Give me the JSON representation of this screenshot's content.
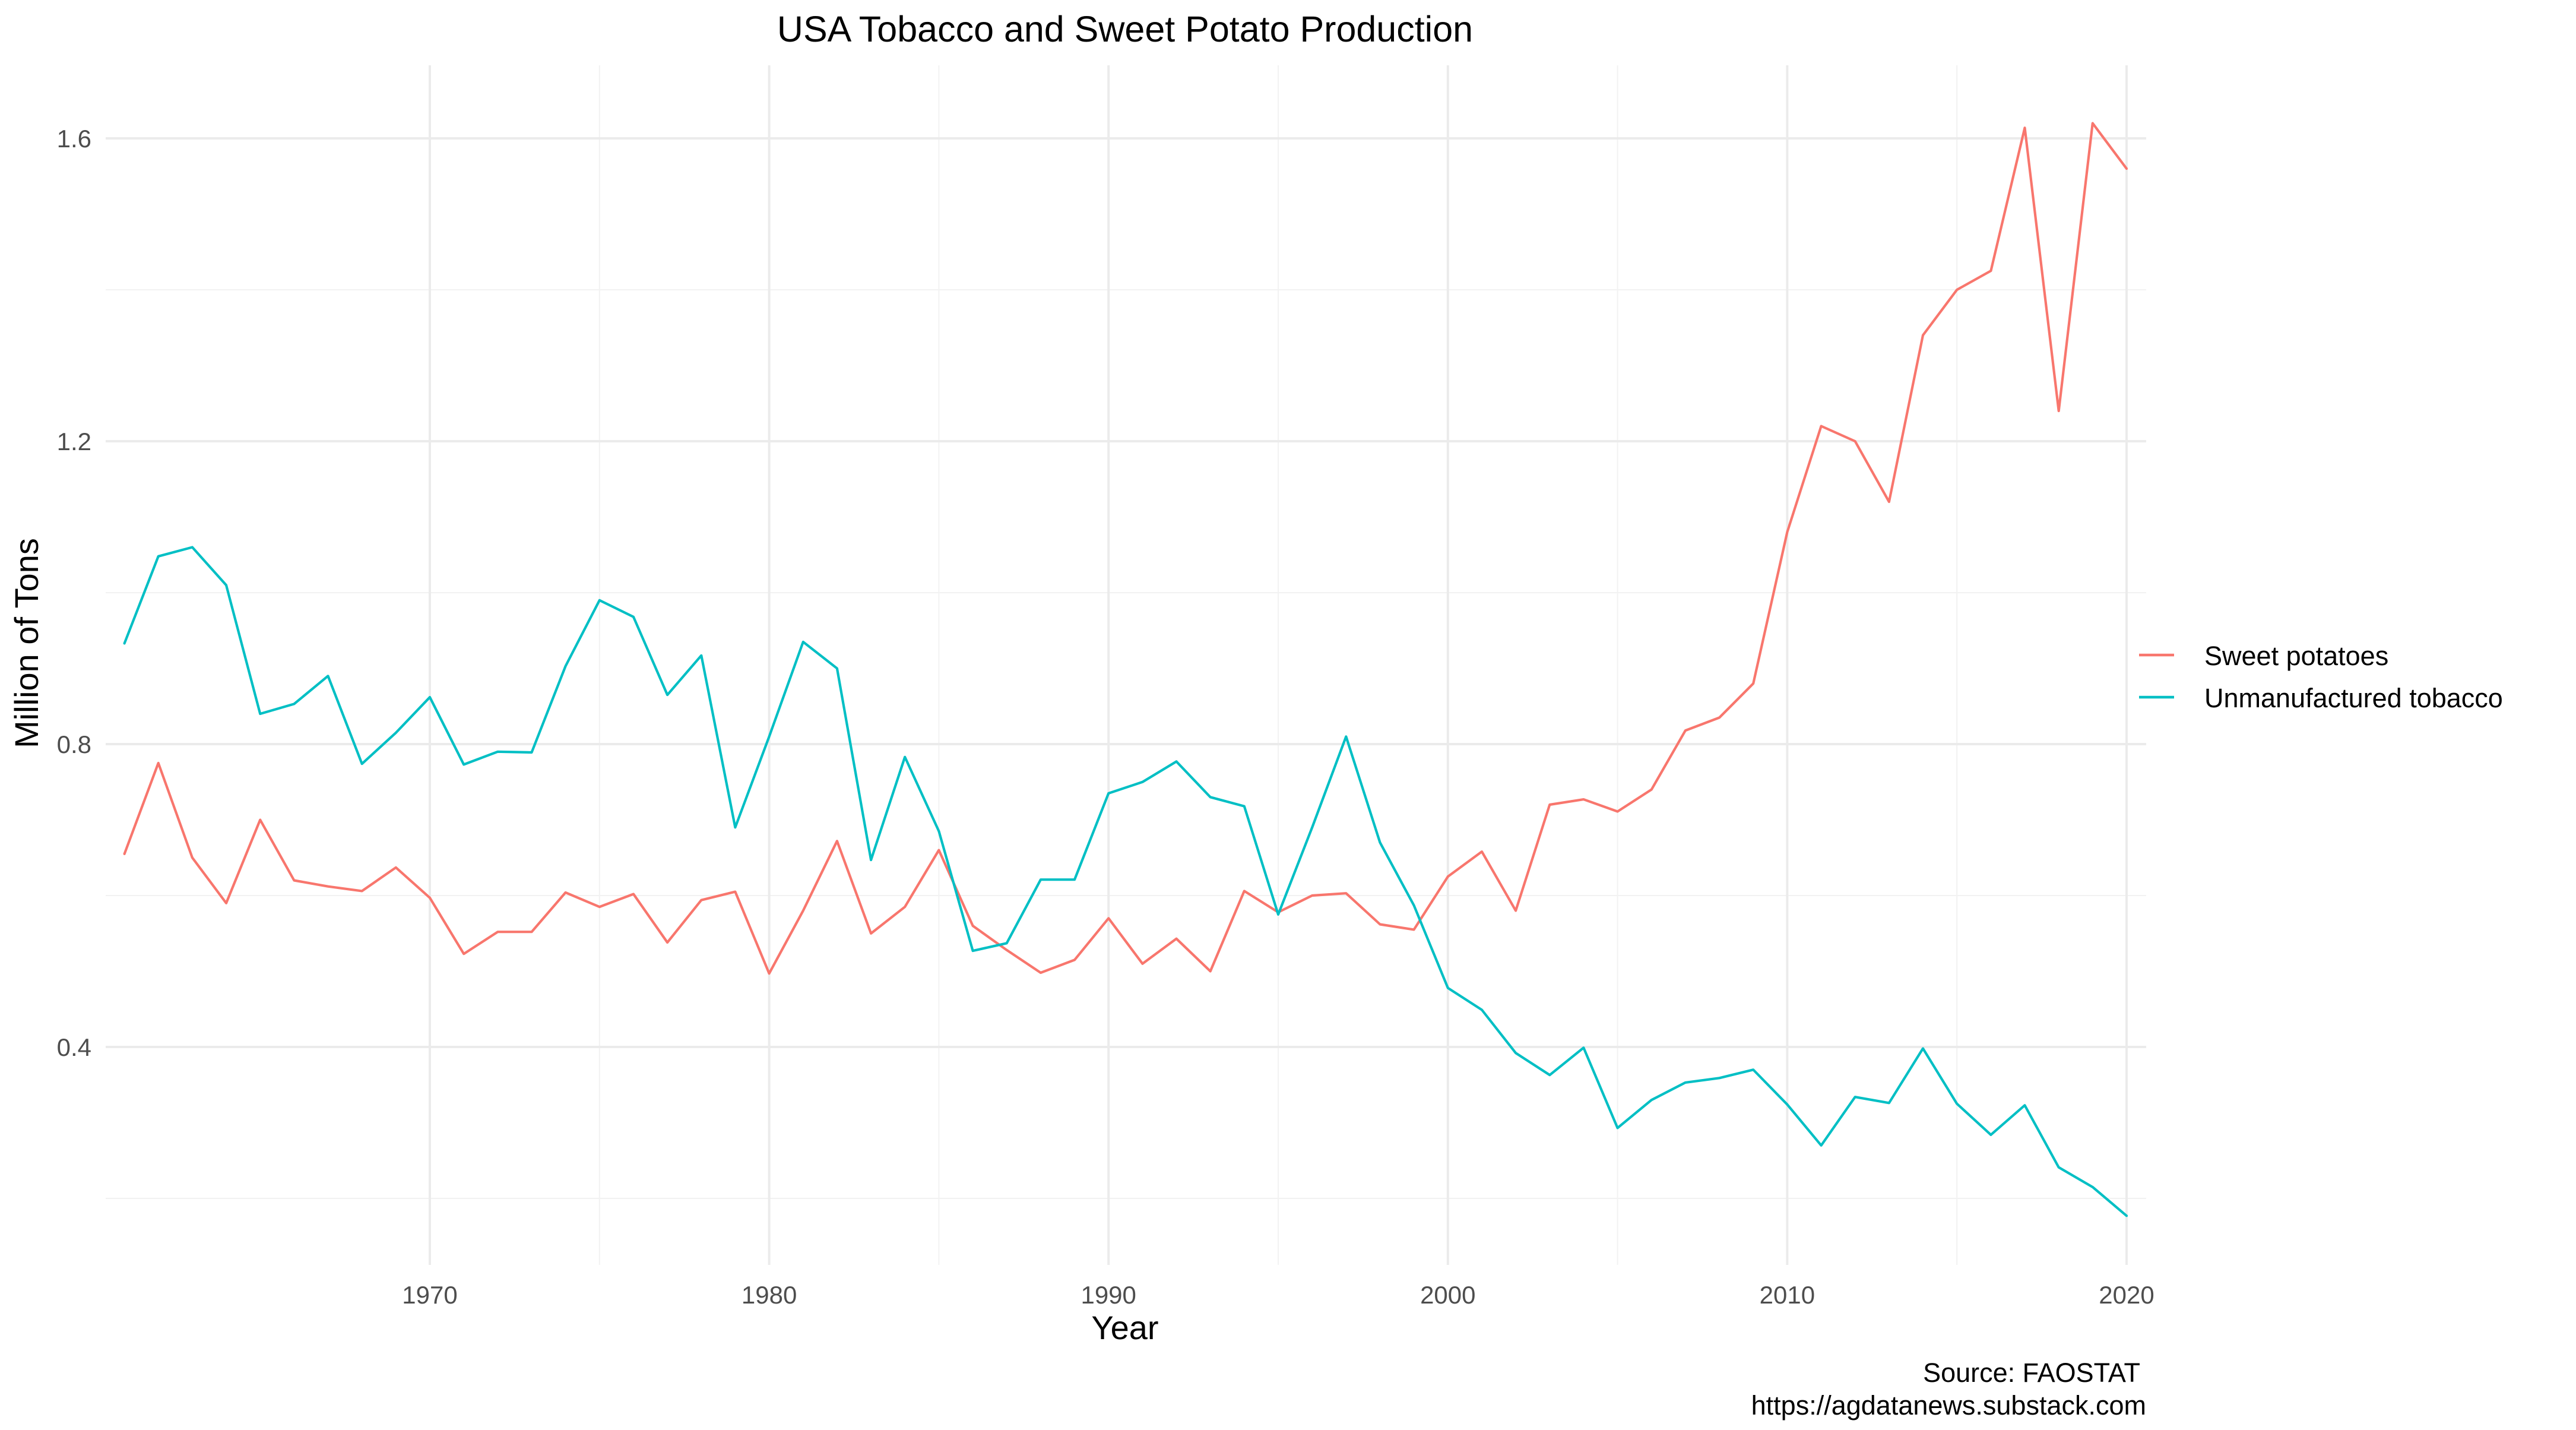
{
  "chart_data": {
    "type": "line",
    "title": "USA Tobacco and Sweet Potato Production",
    "xlabel": "Year",
    "ylabel": "Million of Tons",
    "xlim": [
      1961,
      2020
    ],
    "ylim": [
      0.18,
      1.62
    ],
    "x_ticks": [
      1970,
      1980,
      1990,
      2000,
      2010,
      2020
    ],
    "y_ticks": [
      0.4,
      0.8,
      1.2,
      1.6
    ],
    "y_tick_labels": [
      "0.4",
      "0.8",
      "1.2",
      "1.6"
    ],
    "grid": true,
    "legend_position": "right",
    "x": [
      1961,
      1962,
      1963,
      1964,
      1965,
      1966,
      1967,
      1968,
      1969,
      1970,
      1971,
      1972,
      1973,
      1974,
      1975,
      1976,
      1977,
      1978,
      1979,
      1980,
      1981,
      1982,
      1983,
      1984,
      1985,
      1986,
      1987,
      1988,
      1989,
      1990,
      1991,
      1992,
      1993,
      1994,
      1995,
      1996,
      1997,
      1998,
      1999,
      2000,
      2001,
      2002,
      2003,
      2004,
      2005,
      2006,
      2007,
      2008,
      2009,
      2010,
      2011,
      2012,
      2013,
      2014,
      2015,
      2016,
      2017,
      2018,
      2019,
      2020
    ],
    "series": [
      {
        "name": "Sweet potatoes",
        "color": "#F8766D",
        "values": [
          0.655,
          0.775,
          0.65,
          0.59,
          0.7,
          0.62,
          0.612,
          0.606,
          0.637,
          0.597,
          0.523,
          0.552,
          0.552,
          0.604,
          0.585,
          0.602,
          0.538,
          0.594,
          0.605,
          0.497,
          0.58,
          0.672,
          0.55,
          0.585,
          0.66,
          0.56,
          0.528,
          0.498,
          0.515,
          0.57,
          0.51,
          0.543,
          0.5,
          0.606,
          0.578,
          0.6,
          0.603,
          0.562,
          0.555,
          0.625,
          0.658,
          0.58,
          0.72,
          0.727,
          0.711,
          0.74,
          0.818,
          0.835,
          0.88,
          1.08,
          1.22,
          1.2,
          1.12,
          1.34,
          1.4,
          1.425,
          1.614,
          1.24,
          1.62,
          1.56
        ]
      },
      {
        "name": "Unmanufactured tobacco",
        "color": "#00BFC4",
        "values": [
          0.933,
          1.048,
          1.06,
          1.01,
          0.84,
          0.853,
          0.89,
          0.774,
          0.815,
          0.862,
          0.773,
          0.79,
          0.789,
          0.903,
          0.99,
          0.968,
          0.865,
          0.917,
          0.69,
          0.81,
          0.935,
          0.9,
          0.647,
          0.783,
          0.685,
          0.527,
          0.537,
          0.621,
          0.621,
          0.735,
          0.75,
          0.777,
          0.73,
          0.718,
          0.575,
          0.69,
          0.81,
          0.67,
          0.587,
          0.478,
          0.449,
          0.392,
          0.363,
          0.399,
          0.293,
          0.33,
          0.353,
          0.359,
          0.37,
          0.324,
          0.27,
          0.334,
          0.326,
          0.398,
          0.325,
          0.284,
          0.323,
          0.241,
          0.215,
          0.177
        ]
      }
    ],
    "caption_lines": [
      "Source: FAOSTAT",
      "https://agdatanews.substack.com"
    ]
  }
}
